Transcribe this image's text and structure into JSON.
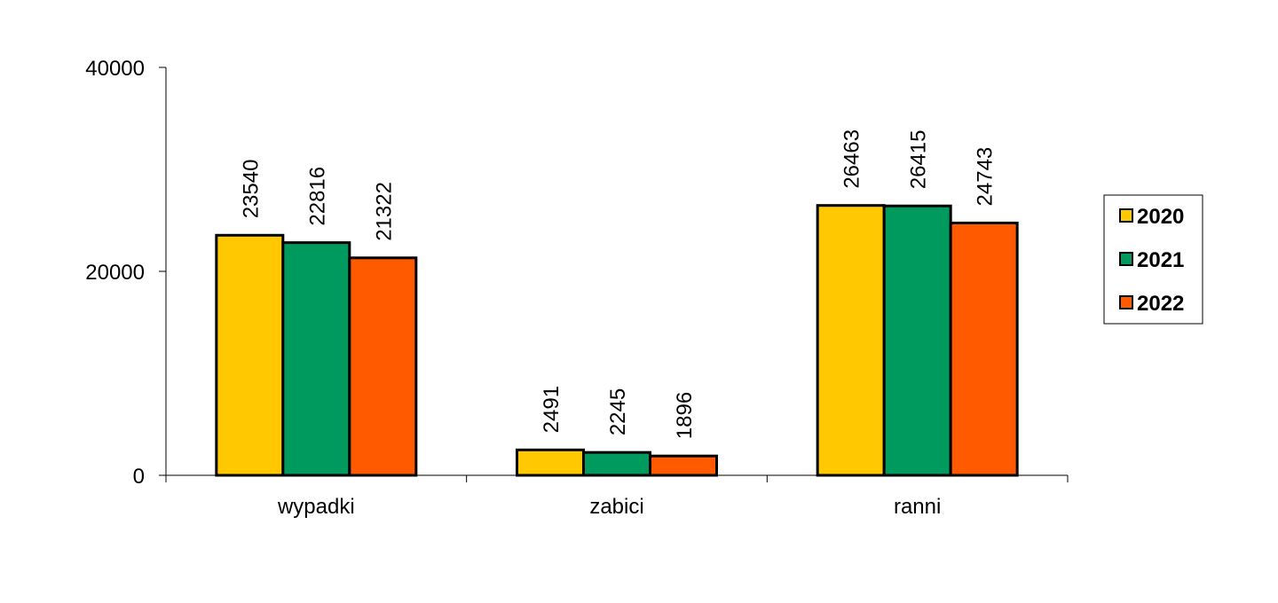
{
  "chart_data": {
    "type": "bar",
    "categories": [
      "wypadki",
      "zabici",
      "ranni"
    ],
    "series": [
      {
        "name": "2020",
        "values": [
          23540,
          2491,
          26463
        ],
        "color": "#FFC800"
      },
      {
        "name": "2021",
        "values": [
          22816,
          2245,
          26415
        ],
        "color": "#009A5E"
      },
      {
        "name": "2022",
        "values": [
          21322,
          1896,
          24743
        ],
        "color": "#FF5A00"
      }
    ],
    "ylim": [
      0,
      40000
    ],
    "yticks": [
      "0",
      "20000",
      "40000"
    ],
    "grid": false,
    "legend_position": "right"
  }
}
